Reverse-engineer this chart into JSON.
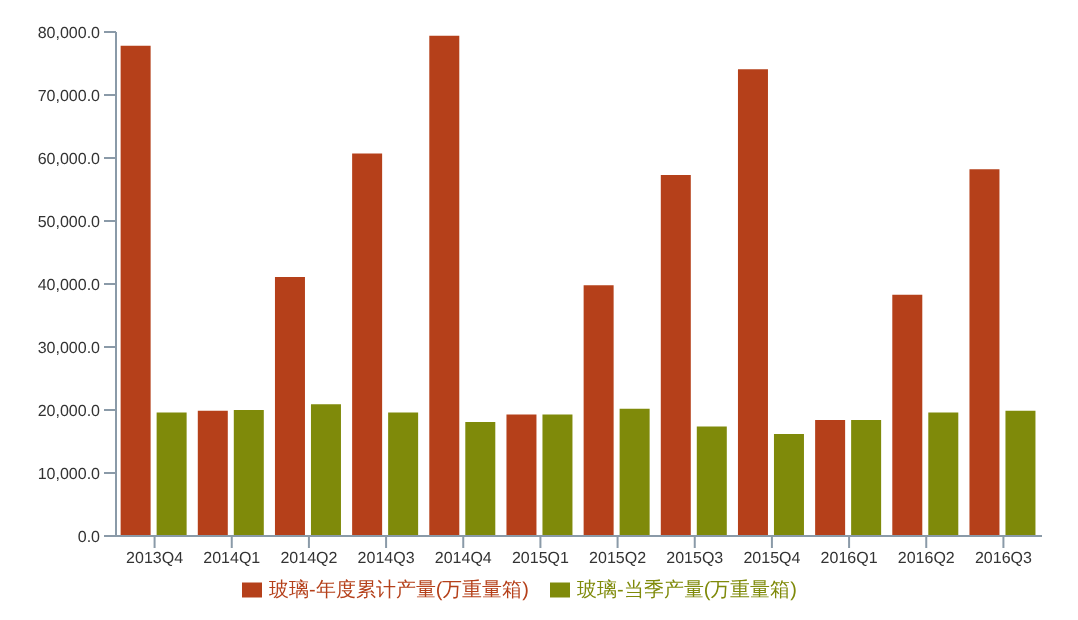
{
  "chart_data": {
    "type": "bar",
    "categories": [
      "2013Q4",
      "2014Q1",
      "2014Q2",
      "2014Q3",
      "2014Q4",
      "2015Q1",
      "2015Q2",
      "2015Q3",
      "2015Q4",
      "2016Q1",
      "2016Q2",
      "2016Q3"
    ],
    "series": [
      {
        "name": "玻璃-年度累计产量(万重量箱)",
        "color": "#b5401a",
        "values": [
          77800,
          19900,
          41100,
          60700,
          79400,
          19300,
          39800,
          57300,
          74100,
          18400,
          38300,
          58200
        ]
      },
      {
        "name": "玻璃-当季产量(万重量箱)",
        "color": "#7f8a0a",
        "values": [
          19600,
          20000,
          20900,
          19600,
          18100,
          19300,
          20200,
          17400,
          16200,
          18400,
          19600,
          19900
        ]
      }
    ],
    "ylim": [
      0,
      80000
    ],
    "yticks": [
      {
        "value": 0,
        "label": "0.0"
      },
      {
        "value": 10000,
        "label": "10,000.0"
      },
      {
        "value": 20000,
        "label": "20,000.0"
      },
      {
        "value": 30000,
        "label": "30,000.0"
      },
      {
        "value": 40000,
        "label": "40,000.0"
      },
      {
        "value": 50000,
        "label": "50,000.0"
      },
      {
        "value": 60000,
        "label": "60,000.0"
      },
      {
        "value": 70000,
        "label": "70,000.0"
      },
      {
        "value": 80000,
        "label": "80,000.0"
      }
    ],
    "grid": false,
    "legend": "bottom"
  }
}
